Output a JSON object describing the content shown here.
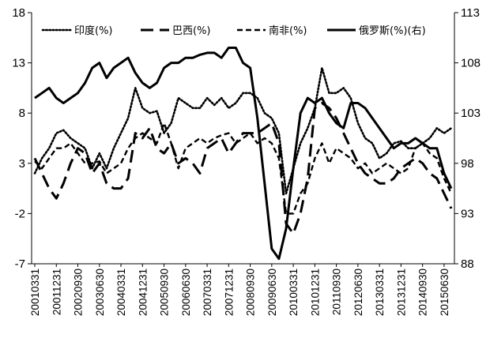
{
  "chart_data": {
    "type": "line",
    "title": "",
    "xlabel": "",
    "ylabel_left": "",
    "ylabel_right": "",
    "y_left": {
      "lim": [
        -7,
        18
      ],
      "ticks": [
        -7,
        -2,
        3,
        8,
        13,
        18
      ]
    },
    "y_right": {
      "lim": [
        88,
        113
      ],
      "ticks": [
        88,
        93,
        98,
        103,
        108,
        113
      ]
    },
    "x_tick_labels": [
      "20010331",
      "20011231",
      "20020930",
      "20030630",
      "20040331",
      "20041231",
      "20050930",
      "20060630",
      "20070331",
      "20071231",
      "20080930",
      "20090630",
      "20100331",
      "20101231",
      "20110930",
      "20120630",
      "20130331",
      "20131231",
      "20140930",
      "20150630"
    ],
    "x_tick_period": 3,
    "n_points": 59,
    "legend_position": "top",
    "grid": false,
    "series": [
      {
        "name": "印度(%)",
        "axis": "left",
        "style": "dotted",
        "values": [
          2.0,
          3.5,
          4.5,
          6.0,
          6.3,
          5.5,
          5.0,
          4.5,
          2.5,
          4.0,
          2.5,
          4.5,
          6.0,
          7.5,
          10.5,
          8.5,
          8.0,
          8.2,
          6.0,
          7.0,
          9.5,
          9.0,
          8.5,
          8.5,
          9.5,
          8.8,
          9.5,
          8.5,
          9.0,
          10.0,
          10.0,
          9.5,
          8.0,
          7.5,
          6.0,
          0.0,
          2.5,
          5.0,
          6.5,
          8.5,
          12.5,
          10.0,
          10.0,
          10.5,
          9.5,
          7.0,
          5.5,
          5.0,
          3.5,
          4.0,
          5.0,
          5.2,
          4.5,
          4.5,
          5.0,
          5.5,
          6.5,
          6.0,
          6.5
        ]
      },
      {
        "name": "巴西(%)",
        "axis": "left",
        "style": "longdash",
        "values": [
          3.5,
          2.0,
          0.5,
          -0.5,
          1.0,
          3.0,
          4.5,
          4.0,
          2.0,
          3.0,
          1.0,
          0.5,
          0.5,
          1.5,
          6.0,
          5.5,
          6.5,
          4.5,
          4.0,
          5.0,
          3.0,
          3.5,
          3.0,
          2.0,
          4.5,
          5.0,
          5.5,
          4.0,
          5.0,
          6.0,
          6.0,
          6.0,
          6.5,
          7.0,
          5.0,
          -3.0,
          -4.0,
          -2.0,
          1.5,
          8.5,
          9.0,
          8.5,
          7.5,
          6.0,
          4.5,
          3.0,
          2.0,
          1.5,
          1.0,
          1.0,
          1.5,
          2.5,
          3.0,
          3.5,
          3.0,
          2.0,
          1.5,
          0.0,
          -1.5
        ]
      },
      {
        "name": "南非(%)",
        "axis": "left",
        "style": "dashed",
        "values": [
          3.2,
          2.5,
          3.5,
          4.5,
          4.5,
          5.0,
          4.0,
          3.0,
          3.0,
          3.2,
          2.0,
          2.5,
          3.0,
          4.5,
          5.5,
          6.0,
          5.5,
          5.0,
          7.0,
          5.0,
          2.5,
          4.5,
          5.0,
          5.5,
          5.0,
          5.5,
          5.8,
          6.0,
          5.0,
          5.5,
          6.0,
          5.0,
          5.5,
          5.0,
          3.5,
          -2.0,
          -2.0,
          0.0,
          1.0,
          3.5,
          5.0,
          3.0,
          4.5,
          4.0,
          3.5,
          2.5,
          3.0,
          2.0,
          2.5,
          3.0,
          2.5,
          2.0,
          2.5,
          4.5,
          5.0,
          4.0,
          3.5,
          1.5,
          0.0
        ]
      },
      {
        "name": "俄罗斯(%)(右)",
        "axis": "right",
        "style": "solid",
        "values": [
          104.5,
          105.0,
          105.5,
          104.5,
          104.0,
          104.5,
          105.0,
          106.0,
          107.5,
          108.0,
          106.5,
          107.5,
          108.0,
          108.5,
          107.0,
          106.0,
          105.5,
          106.0,
          107.5,
          108.0,
          108.0,
          108.5,
          108.5,
          108.8,
          109.0,
          109.0,
          108.5,
          109.5,
          109.5,
          108.0,
          107.5,
          102.5,
          96.0,
          89.5,
          88.5,
          91.5,
          97.5,
          103.0,
          104.5,
          104.0,
          104.5,
          103.0,
          102.0,
          101.5,
          104.0,
          104.0,
          103.5,
          102.5,
          101.5,
          100.5,
          99.5,
          100.0,
          100.0,
          100.5,
          100.0,
          99.5,
          99.5,
          97.0,
          95.5
        ]
      }
    ]
  }
}
